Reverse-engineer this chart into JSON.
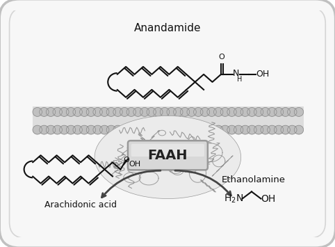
{
  "bg_color": "#ffffff",
  "text_color": "#111111",
  "cell_edge_color": "#c0c0c0",
  "cell_face_color": "#f5f5f5",
  "membrane_color": "#b8b8b8",
  "structure_lw": 1.5,
  "faah_label": "FAAH",
  "anandamide_label": "Anandamide",
  "ethanolamine_label": "Ethanolamine",
  "arachidonic_label": "Arachidonic acid"
}
